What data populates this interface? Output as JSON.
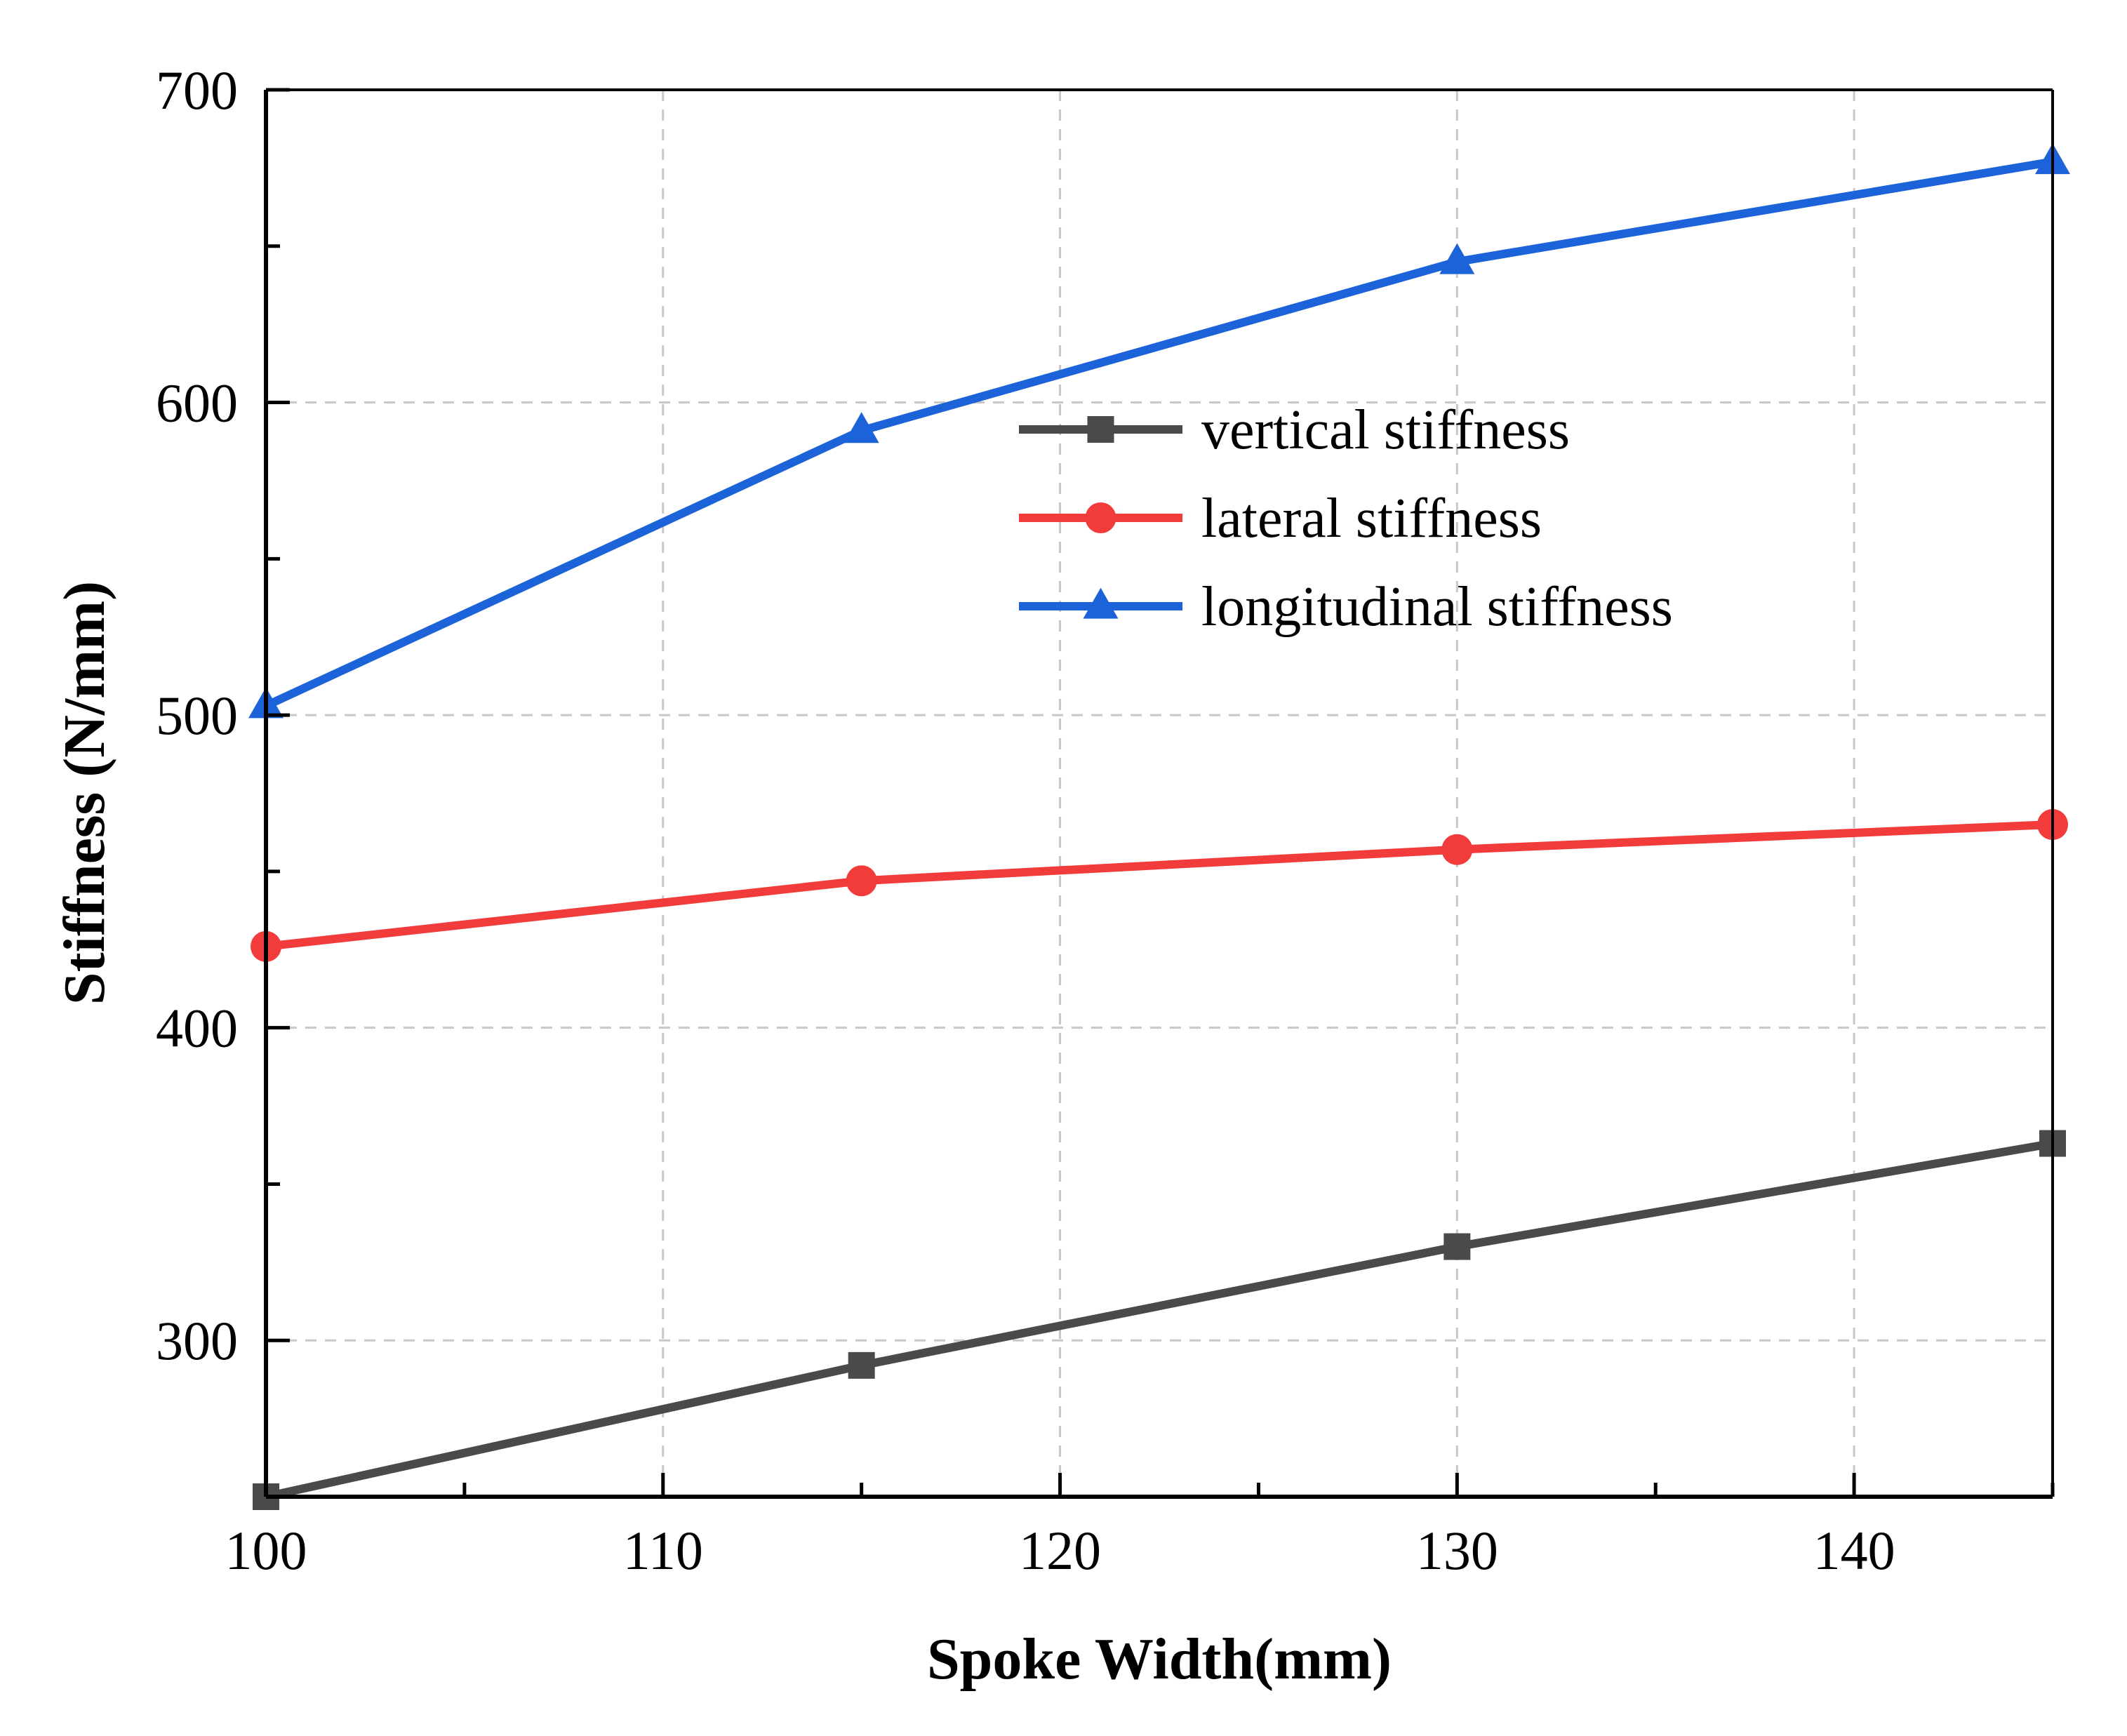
{
  "chart_data": {
    "type": "line",
    "xlabel": "Spoke Width(mm)",
    "ylabel": "Stiffness (N/mm)",
    "x": [
      100,
      115,
      130,
      145
    ],
    "xlim": [
      100,
      145
    ],
    "ylim": [
      250,
      700
    ],
    "x_ticks": [
      100,
      110,
      120,
      130,
      140
    ],
    "y_ticks": [
      300,
      400,
      500,
      600,
      700
    ],
    "grid": true,
    "legend_position": "upper-center",
    "series": [
      {
        "name": "vertical stiffness",
        "values": [
          250,
          292,
          330,
          363
        ],
        "color": "#4a4a4a",
        "marker": "square"
      },
      {
        "name": "lateral stiffness",
        "values": [
          426,
          447,
          457,
          465
        ],
        "color": "#f23b3b",
        "marker": "circle"
      },
      {
        "name": "longitudinal stiffness",
        "values": [
          503,
          591,
          645,
          677
        ],
        "color": "#1c63d9",
        "marker": "triangle"
      }
    ]
  }
}
